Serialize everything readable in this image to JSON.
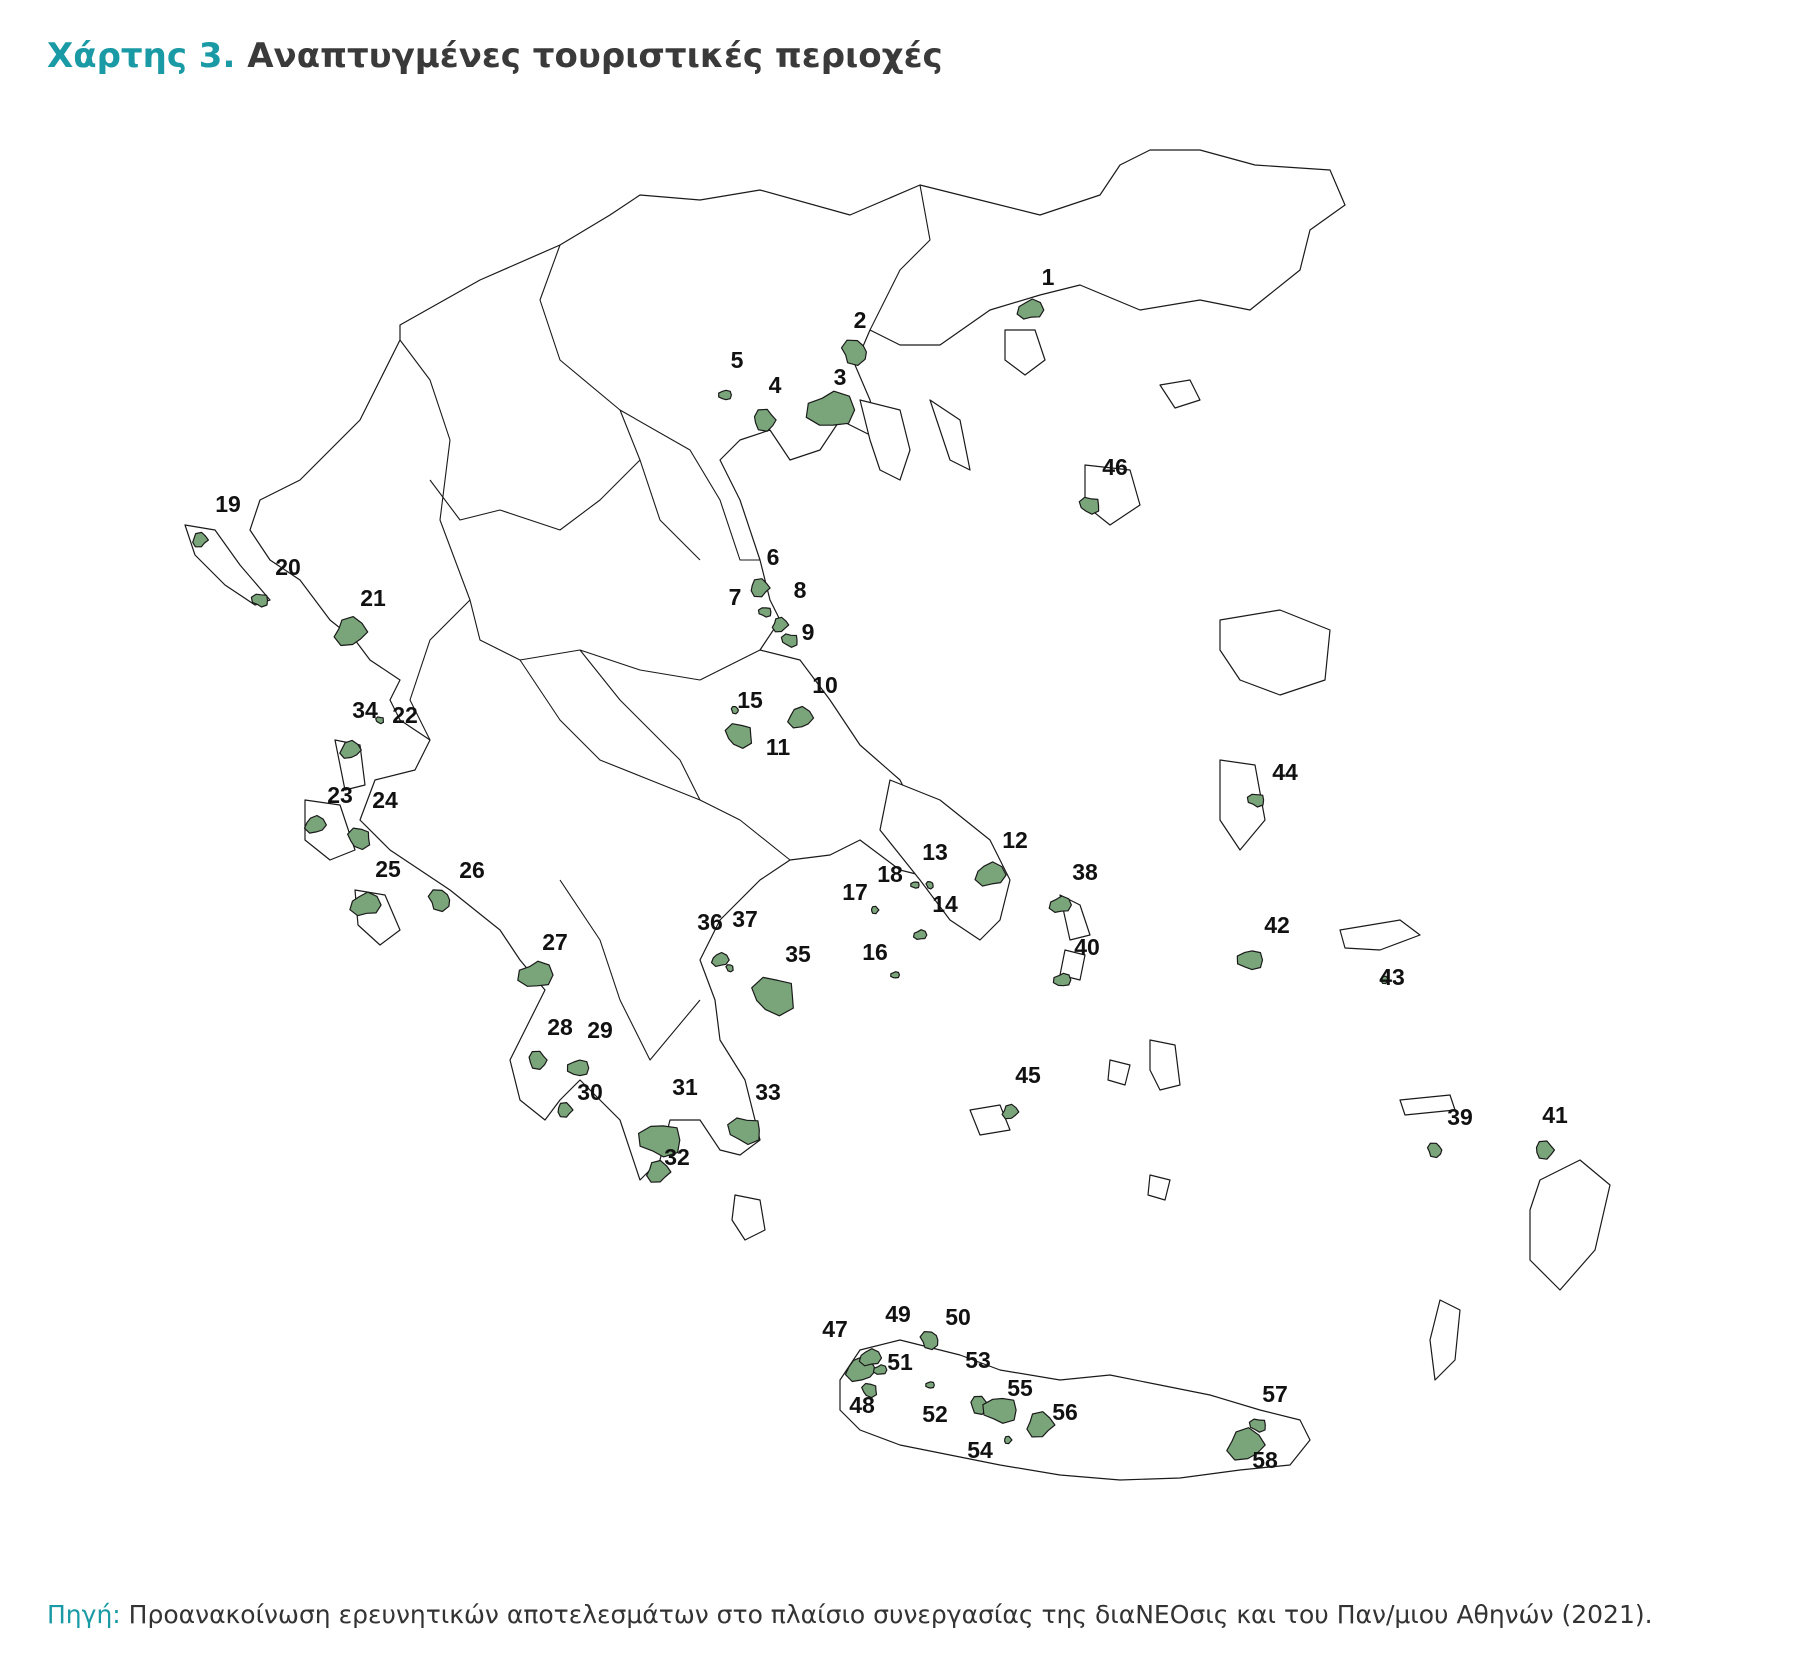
{
  "title": {
    "prefix": "Χάρτης 3.",
    "text": "Αναπτυγμένες τουριστικές περιοχές"
  },
  "source": {
    "label": "Πηγή:",
    "text": "Προανακοίνωση ερευνητικών αποτελεσμάτων στο πλαίσιο συνεργασίας της διαΝΕΟσις και του Παν/μιου Αθηνών (2021)."
  },
  "colors": {
    "area_fill": "#7aa57a",
    "outline": "#1a1a1a",
    "title_accent": "#1a9aa5"
  },
  "areas": [
    {
      "label": "1"
    },
    {
      "label": "2"
    },
    {
      "label": "3"
    },
    {
      "label": "4"
    },
    {
      "label": "5"
    },
    {
      "label": "6"
    },
    {
      "label": "7"
    },
    {
      "label": "8"
    },
    {
      "label": "9"
    },
    {
      "label": "10"
    },
    {
      "label": "11"
    },
    {
      "label": "12"
    },
    {
      "label": "13"
    },
    {
      "label": "14"
    },
    {
      "label": "15"
    },
    {
      "label": "16"
    },
    {
      "label": "17"
    },
    {
      "label": "18"
    },
    {
      "label": "19"
    },
    {
      "label": "20"
    },
    {
      "label": "21"
    },
    {
      "label": "22"
    },
    {
      "label": "23"
    },
    {
      "label": "24"
    },
    {
      "label": "25"
    },
    {
      "label": "26"
    },
    {
      "label": "27"
    },
    {
      "label": "28"
    },
    {
      "label": "29"
    },
    {
      "label": "30"
    },
    {
      "label": "31"
    },
    {
      "label": "32"
    },
    {
      "label": "33"
    },
    {
      "label": "34"
    },
    {
      "label": "35"
    },
    {
      "label": "36"
    },
    {
      "label": "37"
    },
    {
      "label": "38"
    },
    {
      "label": "39"
    },
    {
      "label": "40"
    },
    {
      "label": "41"
    },
    {
      "label": "42"
    },
    {
      "label": "43"
    },
    {
      "label": "44"
    },
    {
      "label": "45"
    },
    {
      "label": "46"
    },
    {
      "label": "47"
    },
    {
      "label": "48"
    },
    {
      "label": "49"
    },
    {
      "label": "50"
    },
    {
      "label": "51"
    },
    {
      "label": "52"
    },
    {
      "label": "53"
    },
    {
      "label": "54"
    },
    {
      "label": "55"
    },
    {
      "label": "56"
    },
    {
      "label": "57"
    },
    {
      "label": "58"
    }
  ]
}
